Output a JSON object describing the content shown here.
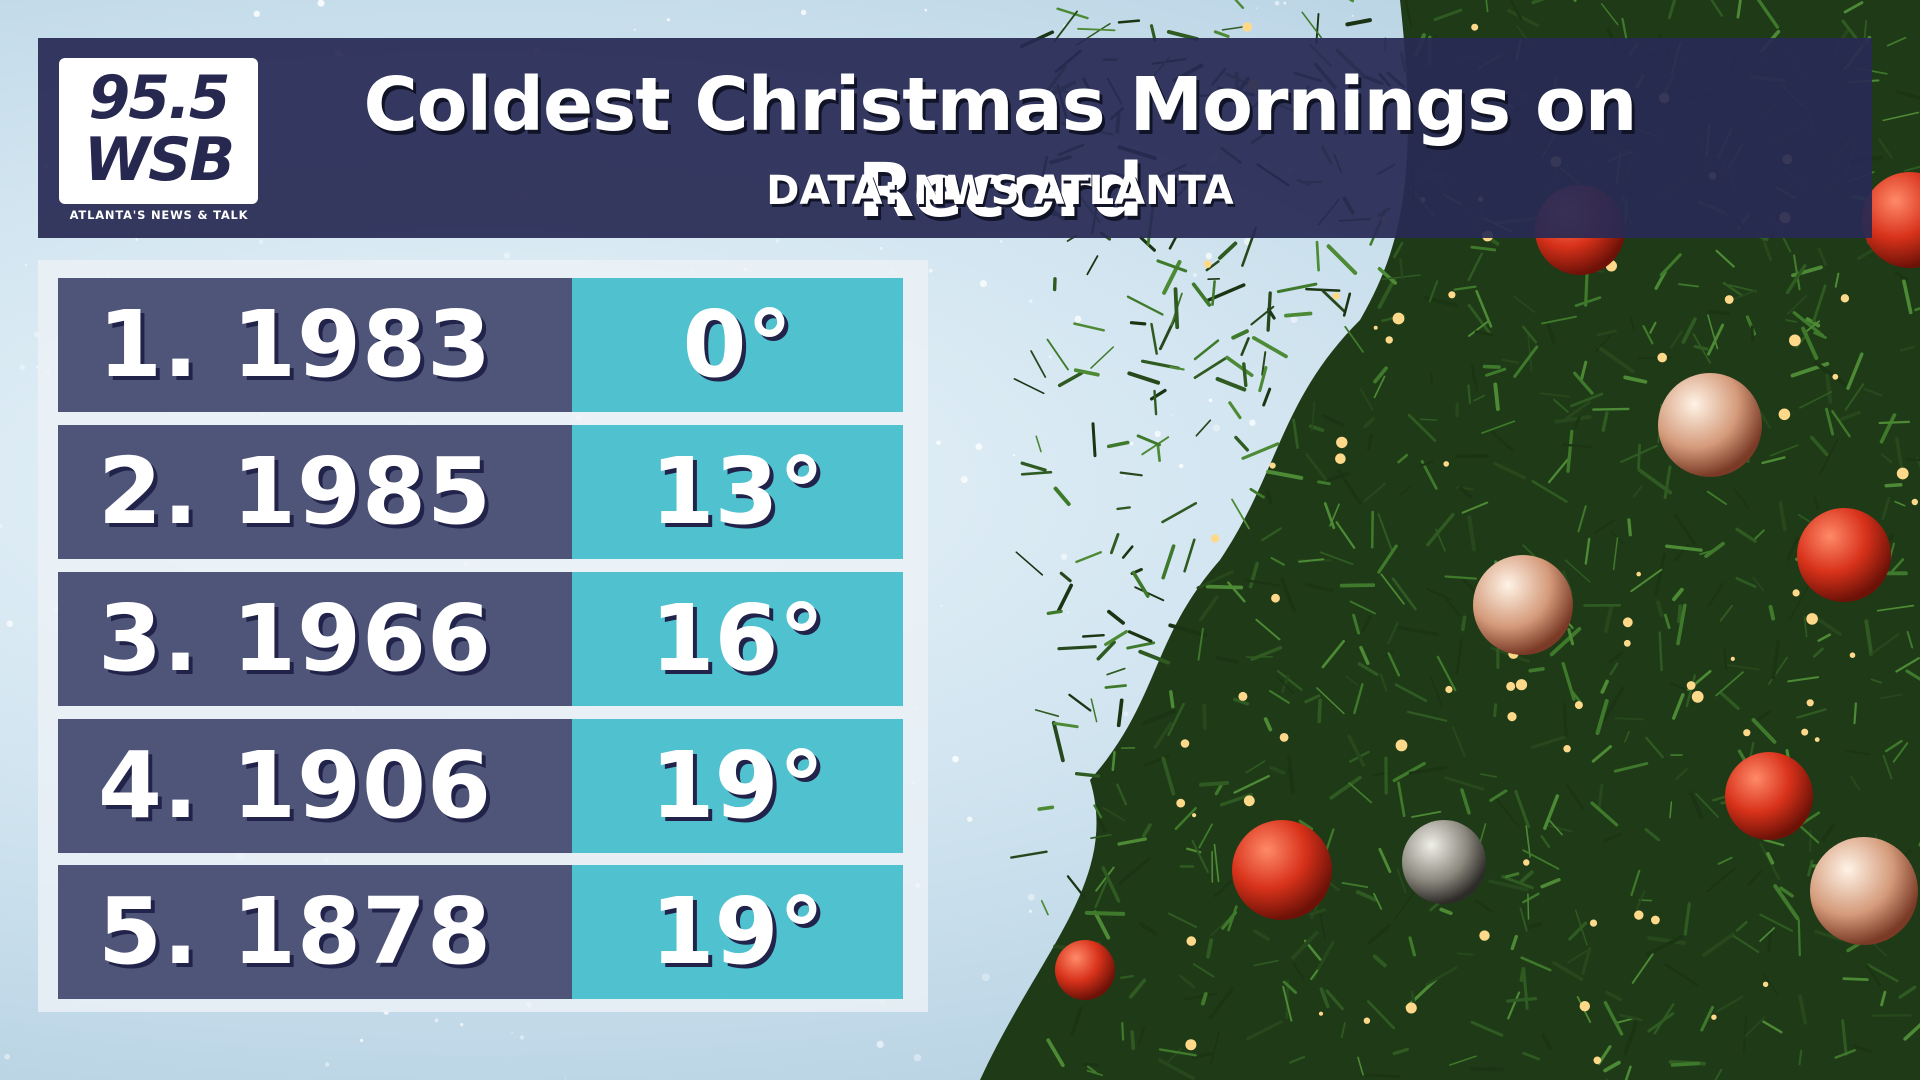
{
  "header": {
    "title": "Coldest Christmas Mornings on Record",
    "subtitle": "DATA: NWS ATLANTA"
  },
  "logo": {
    "line1": "95.5",
    "line2": "WSB",
    "tagline": "ATLANTA'S NEWS & TALK"
  },
  "rankings": [
    {
      "label": "1. 1983",
      "value": "0°"
    },
    {
      "label": "2. 1985",
      "value": "13°"
    },
    {
      "label": "3. 1966",
      "value": "16°"
    },
    {
      "label": "4. 1906",
      "value": "19°"
    },
    {
      "label": "5. 1878",
      "value": "19°"
    }
  ],
  "colors": {
    "header_bg": "#282a54",
    "label_bg": "#4f5578",
    "value_bg": "#50c1cf",
    "logo_text": "#27284f"
  }
}
